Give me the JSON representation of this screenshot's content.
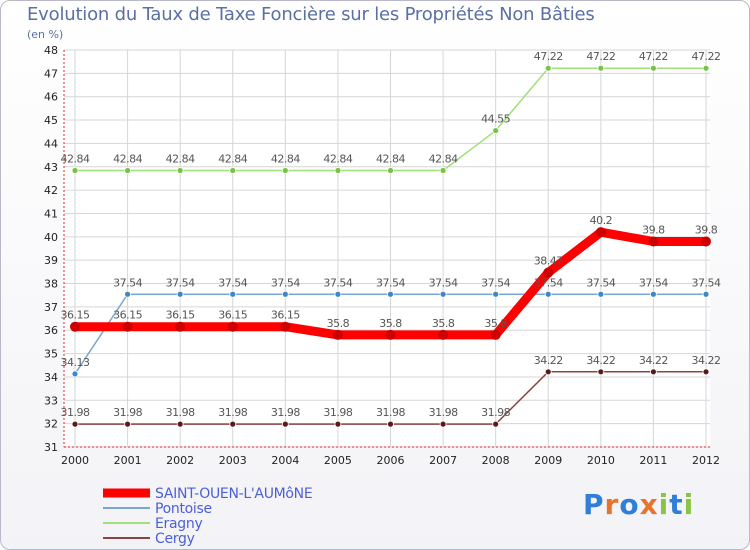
{
  "chart_data": {
    "type": "line",
    "title": "Evolution du Taux de Taxe Foncière sur les Propriétés Non Bâties",
    "unit_label": "(en %)",
    "x": [
      "2000",
      "2001",
      "2002",
      "2003",
      "2004",
      "2005",
      "2006",
      "2007",
      "2008",
      "2009",
      "2010",
      "2011",
      "2012"
    ],
    "ylim": [
      31,
      48
    ],
    "yticks": [
      31,
      32,
      33,
      34,
      35,
      36,
      37,
      38,
      39,
      40,
      41,
      42,
      43,
      44,
      45,
      46,
      47,
      48
    ],
    "series": [
      {
        "name": "SAINT-OUEN-L'AUMôNE",
        "color": "#ff0000",
        "point_color": "#cc0000",
        "width": 9,
        "values": [
          36.15,
          36.15,
          36.15,
          36.15,
          36.15,
          35.8,
          35.8,
          35.8,
          35.8,
          38.47,
          40.2,
          39.8,
          39.8
        ],
        "labels": [
          "36.15",
          "36.15",
          "36.15",
          "36.15",
          "36.15",
          "35.8",
          "35.8",
          "35.8",
          "35.8",
          "38.47",
          "40.2",
          "39.8",
          "39.8"
        ]
      },
      {
        "name": "Pontoise",
        "color": "#7aa7d1",
        "point_color": "#3f86c4",
        "width": 1.5,
        "values": [
          34.13,
          37.54,
          37.54,
          37.54,
          37.54,
          37.54,
          37.54,
          37.54,
          37.54,
          37.54,
          37.54,
          37.54,
          37.54
        ],
        "labels": [
          "34.13",
          "37.54",
          "37.54",
          "37.54",
          "37.54",
          "37.54",
          "37.54",
          "37.54",
          "37.54",
          "37.54",
          "37.54",
          "37.54",
          "37.54"
        ]
      },
      {
        "name": "Eragny",
        "color": "#9fe07a",
        "point_color": "#76c443",
        "width": 1.5,
        "values": [
          42.84,
          42.84,
          42.84,
          42.84,
          42.84,
          42.84,
          42.84,
          42.84,
          44.55,
          47.22,
          47.22,
          47.22,
          47.22
        ],
        "labels": [
          "42.84",
          "42.84",
          "42.84",
          "42.84",
          "42.84",
          "42.84",
          "42.84",
          "42.84",
          "44.55",
          "47.22",
          "47.22",
          "47.22",
          "47.22"
        ]
      },
      {
        "name": "Cergy",
        "color": "#8b4343",
        "point_color": "#5a1a1a",
        "width": 1.5,
        "values": [
          31.98,
          31.98,
          31.98,
          31.98,
          31.98,
          31.98,
          31.98,
          31.98,
          31.98,
          34.22,
          34.22,
          34.22,
          34.22
        ],
        "labels": [
          "31.98",
          "31.98",
          "31.98",
          "31.98",
          "31.98",
          "31.98",
          "31.98",
          "31.98",
          "31.98",
          "34.22",
          "34.22",
          "34.22",
          "34.22"
        ]
      }
    ],
    "legend": [
      "SAINT-OUEN-L'AUMôNE",
      "Pontoise",
      "Eragny",
      "Cergy"
    ],
    "legend_position": "bottom-left"
  },
  "logo": {
    "text": "Proxiti",
    "letters": [
      "P",
      "r",
      "o",
      "x",
      "i",
      "t",
      "i"
    ],
    "colors": [
      "#2f7fd6",
      "#e8732a",
      "#2f7fd6",
      "#e8732a",
      "#89c540",
      "#2f7fd6",
      "#89c540"
    ]
  }
}
